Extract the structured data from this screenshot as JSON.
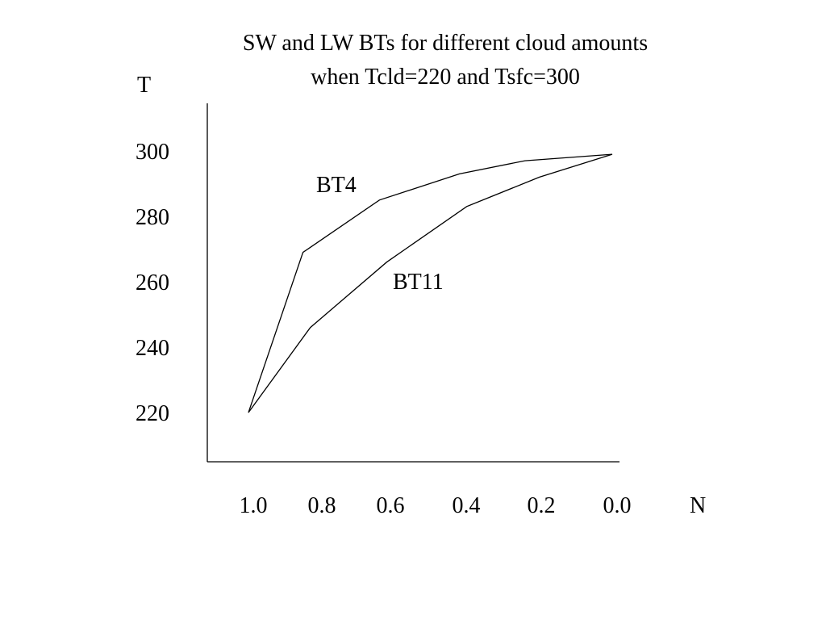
{
  "chart_data": {
    "type": "line",
    "title": [
      "SW and LW BTs for different cloud amounts",
      "when Tcld=220 and Tsfc=300"
    ],
    "ylabel": "T",
    "xlabel": "N",
    "x_ticks": [
      "1.0",
      "0.8",
      "0.6",
      "0.4",
      "0.2",
      "0.0"
    ],
    "y_ticks": [
      "300",
      "280",
      "260",
      "240",
      "220"
    ],
    "xlim": [
      1.0,
      0.0
    ],
    "ylim": [
      220,
      300
    ],
    "x_reversed": true,
    "grid": false,
    "legend": "none",
    "series": [
      {
        "name": "BT4",
        "x": [
          1.0,
          0.85,
          0.64,
          0.42,
          0.24,
          0.0
        ],
        "y": [
          220,
          269,
          285,
          293,
          297,
          299
        ]
      },
      {
        "name": "BT11",
        "x": [
          1.0,
          0.83,
          0.62,
          0.4,
          0.2,
          0.0
        ],
        "y": [
          220,
          246,
          266,
          283,
          292,
          299
        ]
      }
    ]
  }
}
